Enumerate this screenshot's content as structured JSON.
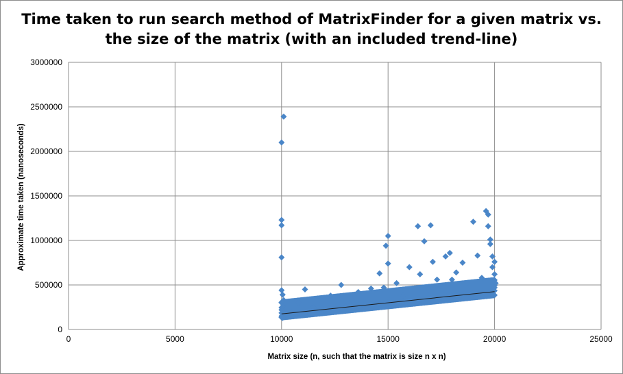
{
  "chart_data": {
    "type": "scatter",
    "title_line1": "Time taken to run search method of MatrixFinder for a given matrix vs.",
    "title_line2": "the size of the matrix (with an included trend-line)",
    "xlabel": "Matrix size (n,  such that the matrix is size n x n)",
    "ylabel": "Approximate time taken (nanoseconds)",
    "xlim": [
      0,
      25000
    ],
    "ylim": [
      0,
      3000000
    ],
    "x_ticks": [
      "0",
      "5000",
      "10000",
      "15000",
      "20000",
      "25000"
    ],
    "y_ticks": [
      "0",
      "500000",
      "1000000",
      "1500000",
      "2000000",
      "2500000",
      "3000000"
    ],
    "grid": true,
    "legend": "none",
    "series": [
      {
        "color": "#4a86c8",
        "marker": "diamond",
        "points": [
          [
            10000,
            2100000
          ],
          [
            10100,
            2390000
          ],
          [
            10000,
            1230000
          ],
          [
            10000,
            1170000
          ],
          [
            10000,
            810000
          ],
          [
            10000,
            440000
          ],
          [
            10050,
            390000
          ],
          [
            10100,
            330000
          ],
          [
            10000,
            300000
          ],
          [
            10050,
            260000
          ],
          [
            10000,
            220000
          ],
          [
            10100,
            190000
          ],
          [
            10000,
            150000
          ],
          [
            10050,
            130000
          ],
          [
            10500,
            200000
          ],
          [
            10800,
            300000
          ],
          [
            11000,
            180000
          ],
          [
            11100,
            450000
          ],
          [
            11500,
            250000
          ],
          [
            11800,
            330000
          ],
          [
            12000,
            210000
          ],
          [
            12300,
            380000
          ],
          [
            12500,
            240000
          ],
          [
            12800,
            500000
          ],
          [
            13000,
            260000
          ],
          [
            13300,
            330000
          ],
          [
            13600,
            420000
          ],
          [
            13800,
            280000
          ],
          [
            14000,
            360000
          ],
          [
            14200,
            460000
          ],
          [
            14500,
            300000
          ],
          [
            14600,
            630000
          ],
          [
            14800,
            470000
          ],
          [
            14900,
            940000
          ],
          [
            15000,
            1050000
          ],
          [
            15000,
            740000
          ],
          [
            15100,
            330000
          ],
          [
            15400,
            520000
          ],
          [
            15700,
            380000
          ],
          [
            16000,
            700000
          ],
          [
            16200,
            420000
          ],
          [
            16400,
            1160000
          ],
          [
            16500,
            620000
          ],
          [
            16700,
            990000
          ],
          [
            16900,
            450000
          ],
          [
            17000,
            1170000
          ],
          [
            17100,
            760000
          ],
          [
            17300,
            560000
          ],
          [
            17500,
            480000
          ],
          [
            17700,
            820000
          ],
          [
            17900,
            860000
          ],
          [
            18000,
            560000
          ],
          [
            18200,
            640000
          ],
          [
            18500,
            750000
          ],
          [
            18700,
            520000
          ],
          [
            19000,
            1210000
          ],
          [
            19200,
            830000
          ],
          [
            19400,
            580000
          ],
          [
            19600,
            1330000
          ],
          [
            19700,
            1290000
          ],
          [
            19700,
            1160000
          ],
          [
            19800,
            1010000
          ],
          [
            19800,
            960000
          ],
          [
            19900,
            820000
          ],
          [
            19900,
            700000
          ],
          [
            20000,
            760000
          ],
          [
            20000,
            620000
          ],
          [
            20050,
            520000
          ],
          [
            20000,
            470000
          ]
        ]
      }
    ],
    "trendline": {
      "color": "#1a1a1a",
      "x": [
        10000,
        20000
      ],
      "y": [
        175000,
        425000
      ]
    }
  }
}
